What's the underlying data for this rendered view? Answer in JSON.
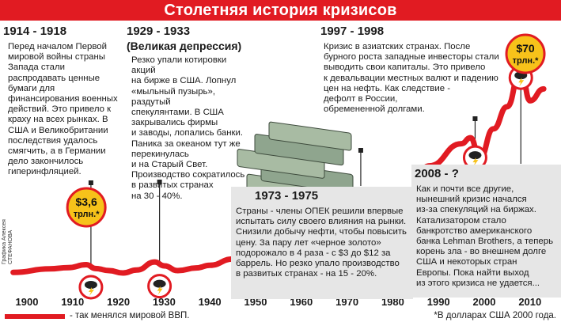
{
  "title": "Столетняя история кризисов",
  "credit": "Графика Алексея СТЕФАНОВА",
  "legend": "- так менялся мировой ВВП.",
  "footnote": "*В долларах США 2000 года.",
  "colors": {
    "red": "#e11b22",
    "yellow": "#f7c21a",
    "gray_panel": "#e6e6e6"
  },
  "badges": [
    {
      "id": "badge-1913",
      "line1": "$3,6",
      "line2": "трлн.*"
    },
    {
      "id": "badge-2008",
      "line1": "$70",
      "line2": "трлн.*"
    }
  ],
  "panels": [
    {
      "id": "panel-1914",
      "heading": "1914 - 1918",
      "body": "Перед началом Первой\nмировой войны страны\nЗапада стали\nраспродавать ценные\nбумаги для\nфинансирования военных\nдействий. Это привело к\nкраху на всех рынках. В\nСША и Великобритании\nпоследствия удалось\nсмягчить, а в Германии\nдело закончилось\nгиперинфляцией."
    },
    {
      "id": "panel-1929",
      "heading": "1929 - 1933",
      "subheading": "(Великая депрессия)",
      "body": "Резко упали котировки акций\nна бирже в США. Лопнул\n«мыльный пузырь», раздутый\nспекулянтами. В США\nзакрывались фирмы\nи заводы, лопались банки.\nПаника за океаном тут же\nперекинулась\nи на Старый Свет.\nПроизводство сократилось\nв развитых странах\nна 30 - 40%."
    },
    {
      "id": "panel-1997",
      "heading": "1997 - 1998",
      "body": "Кризис в азиатских странах. После\nбурного роста западные инвесторы стали\nвыводить свои капиталы. Это привело\nк девальвации местных валют и падению\nцен на нефть. Как следствие -\nдефолт в России,\nобремененной долгами."
    },
    {
      "id": "panel-1973",
      "heading": "1973 - 1975",
      "body": "Страны - члены ОПЕК решили впервые\nиспытать силу своего влияния на рынки.\nСнизили добычу нефти, чтобы повысить\nцену. За пару лет «черное золото»\nподорожало в 4 раза - с $3 до $12 за\nбаррель. Но резко упало производство\nв развитых странах - на 15 - 20%."
    },
    {
      "id": "panel-2008",
      "heading": "2008 - ?",
      "body": "Как и почти все другие,\nнынешний кризис начался\nиз-за спекуляций на биржах.\nКатализатором стало\nбанкротство американского\nбанка Lehman Brothers, а теперь\nкорень зла - во внешнем долге\nСША и некоторых стран\nЕвропы. Пока найти выход\nиз этого кризиса не удается..."
    }
  ],
  "chart_data": {
    "type": "line",
    "x_ticks": [
      "1900",
      "1910",
      "1920",
      "1930",
      "1940",
      "1950",
      "1960",
      "1970",
      "1980",
      "1990",
      "2000",
      "2010"
    ],
    "series": [
      {
        "x": [
          1897,
          1905,
          1909,
          1913,
          1915,
          1918,
          1921,
          1924,
          1928,
          1930,
          1933,
          1937,
          1940,
          1945,
          1950,
          1957,
          1963,
          1970,
          1973,
          1975,
          1978,
          1983,
          1988,
          1995,
          1997,
          1999,
          2002,
          2005,
          2008,
          2010,
          2013
        ],
        "y": [
          1.0,
          2.2,
          2.6,
          3.6,
          2.3,
          1.6,
          0.8,
          1.8,
          4.5,
          3.2,
          1.6,
          2.5,
          3.4,
          5.5,
          7.5,
          12.0,
          16.0,
          20.5,
          23.5,
          13.5,
          20.5,
          27.5,
          37.0,
          44.5,
          46.5,
          39.5,
          49.5,
          57.0,
          70.0,
          59.0,
          63.0
        ]
      }
    ],
    "crisis_years": [
      1914,
      1929,
      1973,
      1998,
      2008
    ]
  }
}
